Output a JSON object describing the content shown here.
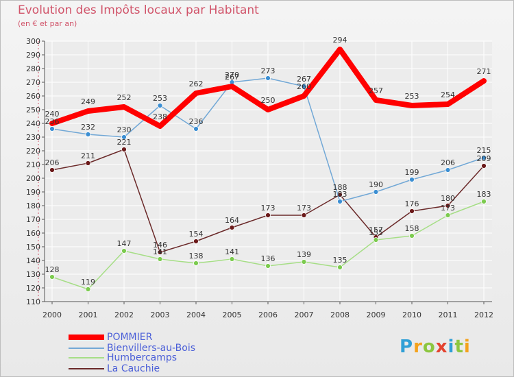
{
  "title": "Evolution des Impôts locaux par Habitant",
  "subtitle": "(en € et par an)",
  "logo": {
    "text": "Proxiti",
    "colors": [
      "#2f9fd6",
      "#f4a21d",
      "#8cc63f",
      "#e4432f",
      "#2f9fd6",
      "#8cc63f",
      "#f4a21d"
    ]
  },
  "chart_data": {
    "type": "line",
    "x": [
      "2000",
      "2001",
      "2002",
      "2003",
      "2004",
      "2005",
      "2006",
      "2007",
      "2008",
      "2009",
      "2010",
      "2011",
      "2012"
    ],
    "ylim": [
      110,
      300
    ],
    "ytick_step": 10,
    "grid": true,
    "legend_position": "bottom-left",
    "series": [
      {
        "name": "POMMIER",
        "color": "#ff0000",
        "values": [
          240,
          249,
          252,
          238,
          262,
          267,
          250,
          260,
          294,
          257,
          253,
          254,
          271
        ]
      },
      {
        "name": "Bienvillers-au-Bois",
        "color": "#72a8d6",
        "values": [
          236,
          232,
          230,
          253,
          236,
          270,
          273,
          267,
          183,
          190,
          199,
          206,
          215
        ]
      },
      {
        "name": "Humbercamps",
        "color": "#a6de86",
        "values": [
          128,
          119,
          147,
          141,
          138,
          141,
          136,
          139,
          135,
          155,
          158,
          173,
          183
        ]
      },
      {
        "name": "La Cauchie",
        "color": "#6b2a2a",
        "values": [
          206,
          211,
          221,
          146,
          154,
          164,
          173,
          173,
          188,
          157,
          176,
          180,
          209
        ]
      }
    ]
  }
}
